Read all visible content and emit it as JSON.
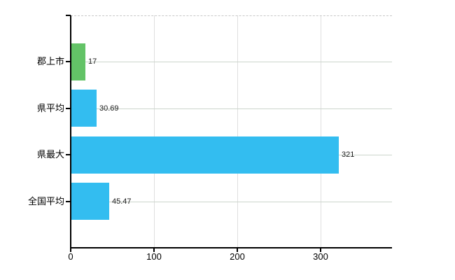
{
  "chart_data": {
    "type": "bar",
    "orientation": "horizontal",
    "title": "",
    "xlabel": "",
    "ylabel": "",
    "legend": "none",
    "categories": [
      "郡上市",
      "県平均",
      "県最大",
      "全国平均"
    ],
    "values": [
      17,
      30.69,
      321,
      45.47
    ],
    "value_labels": [
      "17",
      "30.69",
      "321",
      "45.47"
    ],
    "series": [
      {
        "name": "values",
        "values": [
          17,
          30.69,
          321,
          45.47
        ],
        "bar_colors": [
          "#63c367",
          "#33bdf0",
          "#33bdf0",
          "#33bdf0"
        ]
      }
    ],
    "xlim": [
      0,
      386
    ],
    "x_ticks": [
      0,
      100,
      200,
      300
    ],
    "x_tick_labels": [
      "0",
      "100",
      "200",
      "300"
    ],
    "grid": {
      "horizontal_category_lines": true,
      "vertical_tick_lines": true,
      "top_border_dashed": true
    },
    "colors": {
      "axis": "#000000",
      "gridline_horizontal": "#ccd5cc",
      "gridline_vertical": "#dedede",
      "top_border": "#c9c9c9",
      "bar_green": "#63c367",
      "bar_blue": "#33bdf0",
      "text": "#000000",
      "background": "#ffffff"
    }
  }
}
